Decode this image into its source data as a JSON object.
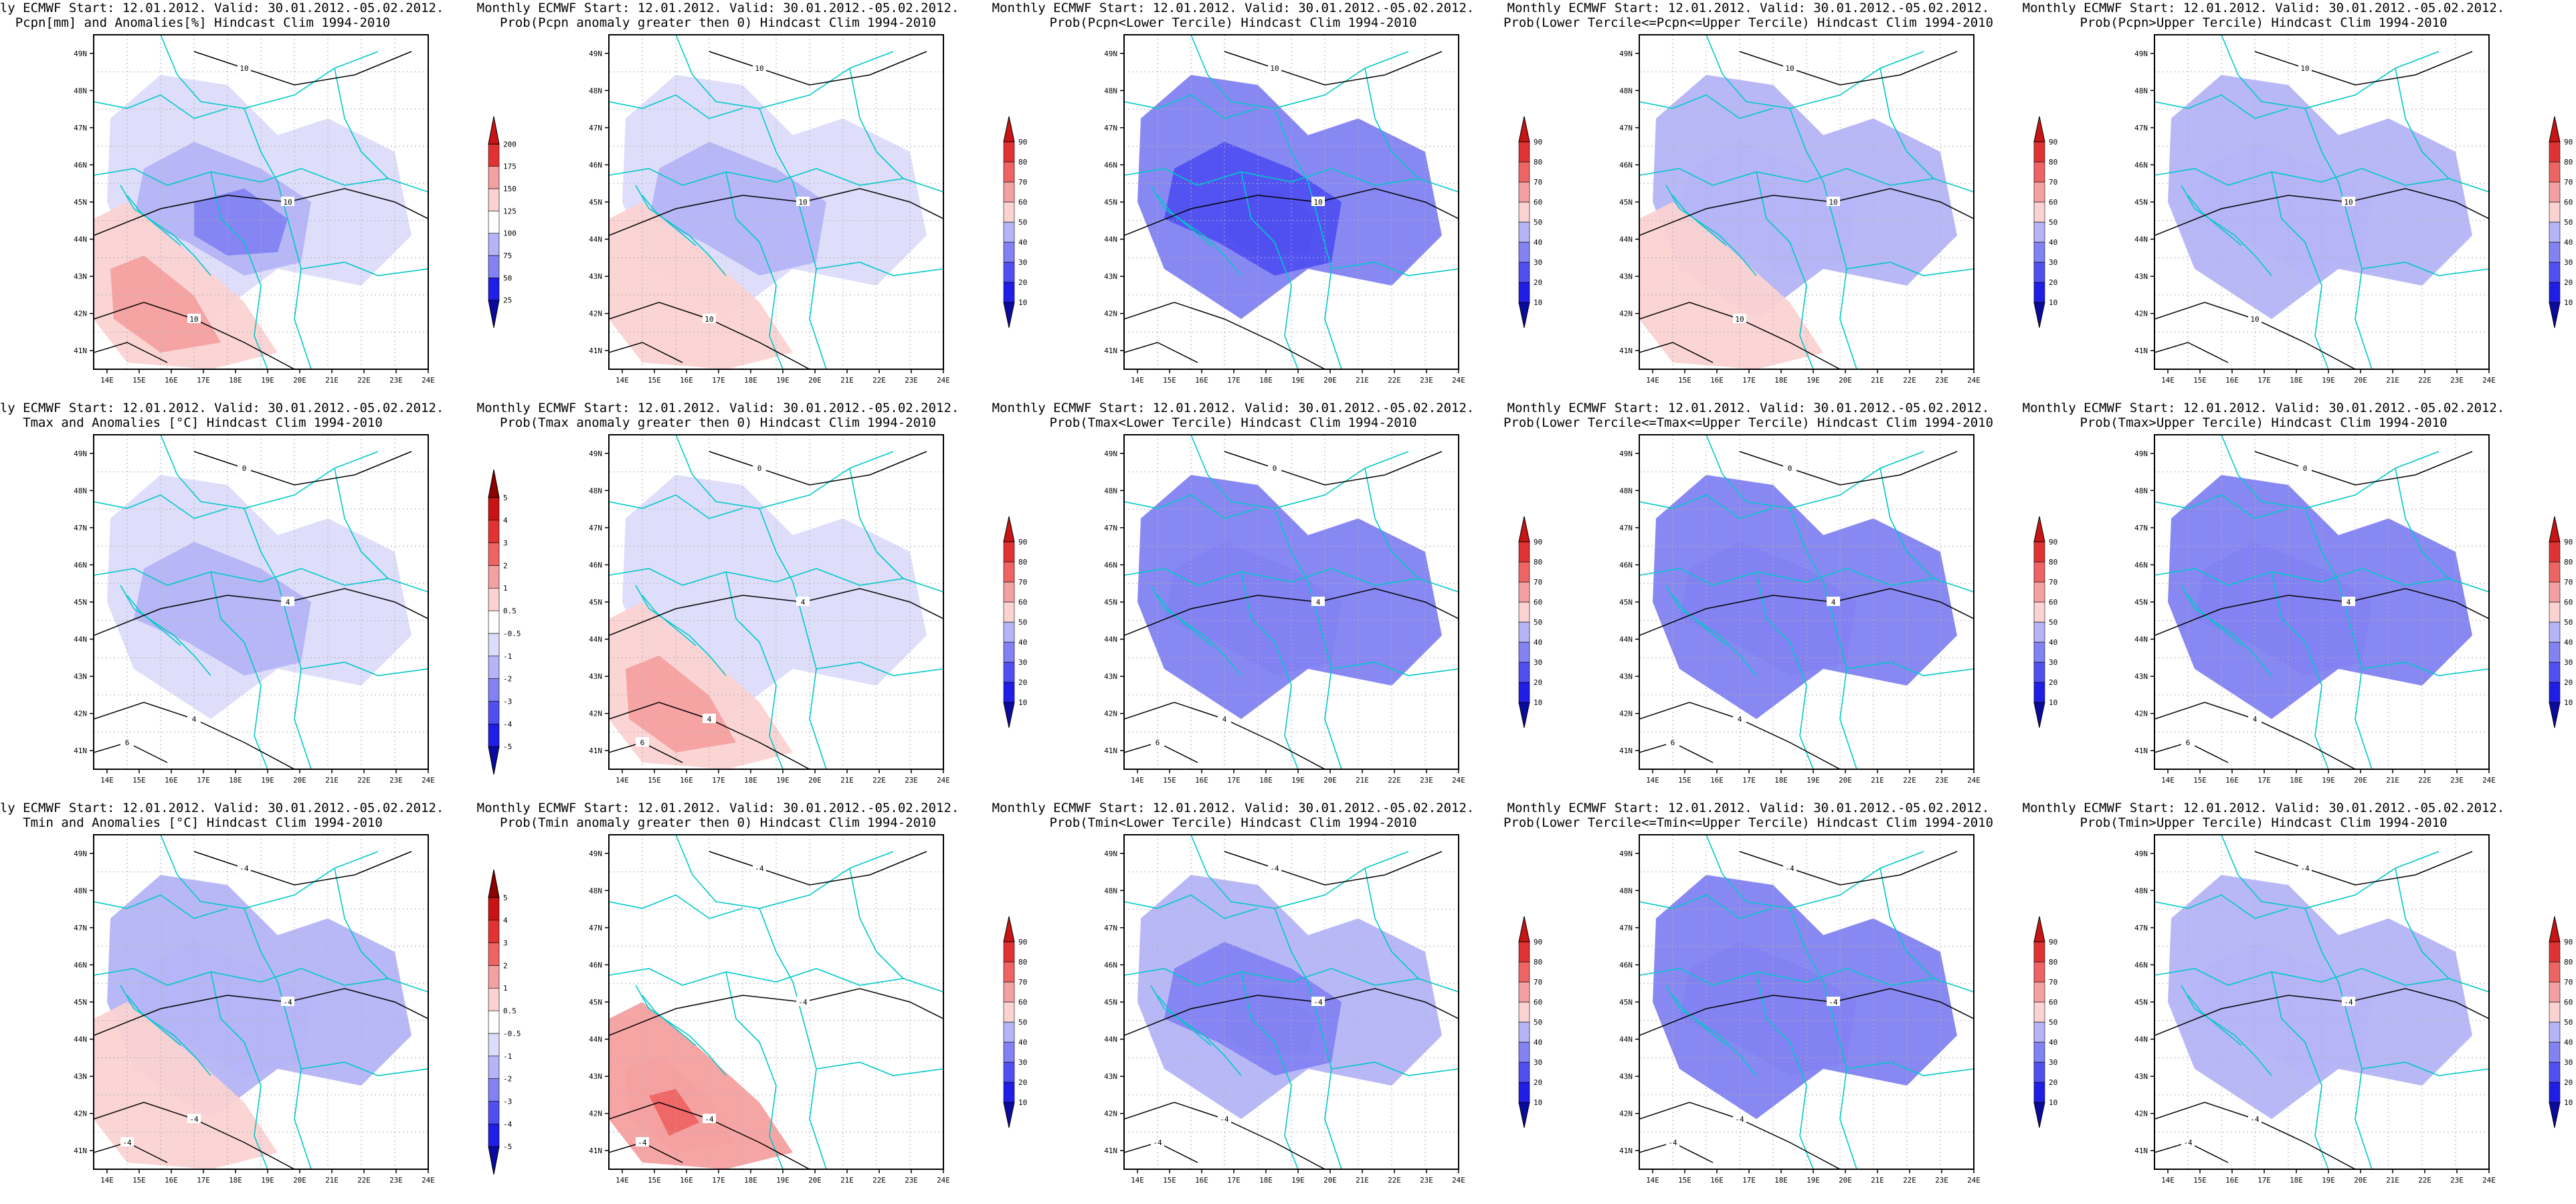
{
  "figure": {
    "title_line1": "Monthly ECMWF Start: 12.01.2012. Valid: 30.01.2012.-05.02.2012.",
    "lat_ticks": [
      "41N",
      "42N",
      "43N",
      "44N",
      "45N",
      "46N",
      "47N",
      "48N",
      "49N"
    ],
    "lon_ticks": [
      "14E",
      "15E",
      "16E",
      "17E",
      "18E",
      "19E",
      "20E",
      "21E",
      "22E",
      "23E",
      "24E"
    ],
    "colors": {
      "blue_levels": [
        "#0a0a9e",
        "#1e1ee6",
        "#5050f0",
        "#8282f2",
        "#b4b4f7",
        "#dcdcfb"
      ],
      "white": "#ffffff",
      "red_levels": [
        "#fbd2d2",
        "#f5a0a0",
        "#ee6464",
        "#e13232",
        "#c81414",
        "#8c0000"
      ],
      "border_lines": "#00c8c8",
      "contours": "#000000"
    }
  },
  "panels": [
    {
      "subtitle": "Pcpn[mm] and Anomalies[%] Hindcast Clim 1994-2010",
      "colorbar_labels": [
        "25",
        "50",
        "75",
        "100",
        "125",
        "150",
        "175",
        "200"
      ],
      "contour_labels": [
        "10",
        "10",
        "10"
      ],
      "shading": {
        "blue": [
          0.2,
          0.14,
          0.08
        ],
        "red": [
          0.22,
          0.1
        ]
      }
    },
    {
      "subtitle": "Prob(Pcpn anomaly greater then 0) Hindcast Clim 1994-2010",
      "colorbar_labels": [
        "10",
        "20",
        "30",
        "40",
        "50",
        "60",
        "70",
        "80",
        "90"
      ],
      "contour_labels": [
        "10",
        "10",
        "10"
      ],
      "shading": {
        "blue": [
          0.22,
          0.12
        ],
        "red": [
          0.05
        ]
      }
    },
    {
      "subtitle": "Prob(Pcpn<Lower Tercile) Hindcast Clim 1994-2010",
      "colorbar_labels": [
        "10",
        "20",
        "30",
        "40",
        "50",
        "60",
        "70",
        "80",
        "90"
      ],
      "contour_labels": [
        "10",
        "10"
      ],
      "shading": {
        "blue": [
          0.85,
          0.65,
          0.4,
          0.12
        ],
        "red": []
      }
    },
    {
      "subtitle": "Prob(Lower Tercile<=Pcpn<=Upper Tercile) Hindcast Clim 1994-2010",
      "colorbar_labels": [
        "10",
        "20",
        "30",
        "40",
        "50",
        "60",
        "70",
        "80",
        "90"
      ],
      "contour_labels": [
        "10",
        "10",
        "10"
      ],
      "shading": {
        "blue": [
          0.55,
          0.25
        ],
        "red": [
          0.02
        ]
      }
    },
    {
      "subtitle": "Prob(Pcpn>Upper Tercile) Hindcast Clim 1994-2010",
      "colorbar_labels": [
        "10",
        "20",
        "30",
        "40",
        "50",
        "60",
        "70",
        "80",
        "90"
      ],
      "contour_labels": [
        "10",
        "10",
        "10"
      ],
      "shading": {
        "blue": [
          0.6,
          0.22
        ],
        "red": []
      }
    },
    {
      "subtitle": "Tmax and Anomalies [°C] Hindcast Clim 1994-2010",
      "colorbar_labels": [
        "-5",
        "-4",
        "-3",
        "-2",
        "-1",
        "-0.5",
        "0.5",
        "1",
        "2",
        "3",
        "4",
        "5"
      ],
      "contour_labels": [
        "0",
        "4",
        "4",
        "6"
      ],
      "shading": {
        "blue": [
          0.3,
          0.06
        ],
        "red": []
      }
    },
    {
      "subtitle": "Prob(Tmax anomaly greater then 0) Hindcast Clim 1994-2010",
      "colorbar_labels": [
        "10",
        "20",
        "30",
        "40",
        "50",
        "60",
        "70",
        "80",
        "90"
      ],
      "contour_labels": [
        "0",
        "4",
        "4",
        "6"
      ],
      "shading": {
        "blue": [
          0.04
        ],
        "red": [
          0.22,
          0.1
        ]
      }
    },
    {
      "subtitle": "Prob(Tmax<Lower Tercile) Hindcast Clim 1994-2010",
      "colorbar_labels": [
        "10",
        "20",
        "30",
        "40",
        "50",
        "60",
        "70",
        "80",
        "90"
      ],
      "contour_labels": [
        "0",
        "4",
        "4",
        "6"
      ],
      "shading": {
        "blue": [
          0.7,
          0.45,
          0.18
        ],
        "red": []
      }
    },
    {
      "subtitle": "Prob(Lower Tercile<=Tmax<=Upper Tercile) Hindcast Clim 1994-2010",
      "colorbar_labels": [
        "10",
        "20",
        "30",
        "40",
        "50",
        "60",
        "70",
        "80",
        "90"
      ],
      "contour_labels": [
        "0",
        "4",
        "4",
        "6"
      ],
      "shading": {
        "blue": [
          0.85,
          0.5,
          0.08
        ],
        "red": []
      }
    },
    {
      "subtitle": "Prob(Tmax>Upper Tercile) Hindcast Clim 1994-2010",
      "colorbar_labels": [
        "10",
        "20",
        "30",
        "40",
        "50",
        "60",
        "70",
        "80",
        "90"
      ],
      "contour_labels": [
        "0",
        "4",
        "4",
        "6"
      ],
      "shading": {
        "blue": [
          0.8,
          0.55
        ],
        "red": []
      }
    },
    {
      "subtitle": "Tmin and Anomalies [°C] Hindcast Clim 1994-2010",
      "colorbar_labels": [
        "-5",
        "-4",
        "-3",
        "-2",
        "-1",
        "-0.5",
        "0.5",
        "1",
        "2",
        "3",
        "4",
        "5"
      ],
      "contour_labels": [
        "-4",
        "-4",
        "-4",
        "-4"
      ],
      "shading": {
        "blue": [
          0.45,
          0.2
        ],
        "red": [
          0.1
        ]
      }
    },
    {
      "subtitle": "Prob(Tmin anomaly greater then 0) Hindcast Clim 1994-2010",
      "colorbar_labels": [
        "10",
        "20",
        "30",
        "40",
        "50",
        "60",
        "70",
        "80",
        "90"
      ],
      "contour_labels": [
        "-4",
        "-4",
        "-4",
        "-4"
      ],
      "shading": {
        "blue": [],
        "red": [
          0.35,
          0.18,
          0.08
        ]
      }
    },
    {
      "subtitle": "Prob(Tmin<Lower Tercile) Hindcast Clim 1994-2010",
      "colorbar_labels": [
        "10",
        "20",
        "30",
        "40",
        "50",
        "60",
        "70",
        "80",
        "90"
      ],
      "contour_labels": [
        "-4",
        "-4",
        "-4",
        "-4"
      ],
      "shading": {
        "blue": [
          0.55,
          0.4,
          0.15
        ],
        "red": []
      }
    },
    {
      "subtitle": "Prob(Lower Tercile<=Tmin<=Upper Tercile) Hindcast Clim 1994-2010",
      "colorbar_labels": [
        "10",
        "20",
        "30",
        "40",
        "50",
        "60",
        "70",
        "80",
        "90"
      ],
      "contour_labels": [
        "-4",
        "-4",
        "-4",
        "-4"
      ],
      "shading": {
        "blue": [
          0.75,
          0.5,
          0.25
        ],
        "red": []
      }
    },
    {
      "subtitle": "Prob(Tmin>Upper Tercile) Hindcast Clim 1994-2010",
      "colorbar_labels": [
        "10",
        "20",
        "30",
        "40",
        "50",
        "60",
        "70",
        "80",
        "90"
      ],
      "contour_labels": [
        "-4",
        "-4",
        "-4",
        "-4"
      ],
      "shading": {
        "blue": [
          0.5,
          0.25
        ],
        "red": []
      }
    }
  ]
}
